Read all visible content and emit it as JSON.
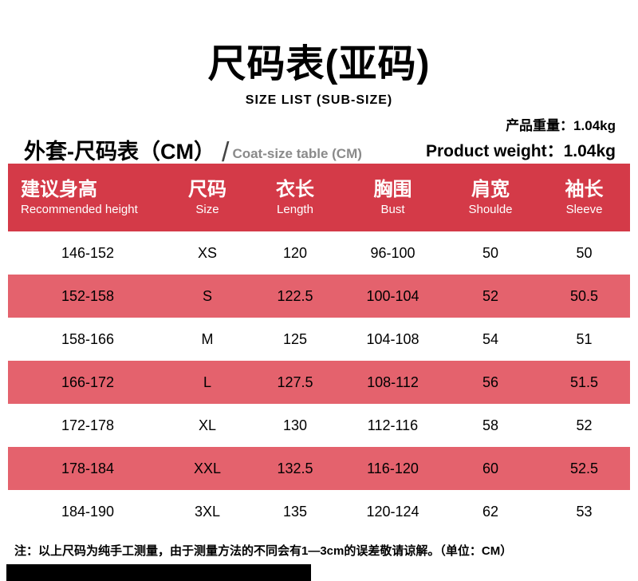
{
  "header": {
    "title": "尺码表(亚码)",
    "subtitle": "SIZE LIST (SUB-SIZE)",
    "weight_cn": "产品重量：1.04kg",
    "weight_en": "Product weight：1.04kg"
  },
  "section": {
    "title_cn": "外套-尺码表（CM）",
    "slash": "/",
    "title_en": "Coat-size table (CM)"
  },
  "chart_data": {
    "type": "table",
    "title": "尺码表(亚码) SIZE LIST (SUB-SIZE)",
    "unit": "CM",
    "columns": [
      {
        "cn": "建议身高",
        "en": "Recommended height"
      },
      {
        "cn": "尺码",
        "en": "Size"
      },
      {
        "cn": "衣长",
        "en": "Length"
      },
      {
        "cn": "胸围",
        "en": "Bust"
      },
      {
        "cn": "肩宽",
        "en": "Shoulde"
      },
      {
        "cn": "袖长",
        "en": "Sleeve"
      }
    ],
    "rows": [
      [
        "146-152",
        "XS",
        "120",
        "96-100",
        "50",
        "50"
      ],
      [
        "152-158",
        "S",
        "122.5",
        "100-104",
        "52",
        "50.5"
      ],
      [
        "158-166",
        "M",
        "125",
        "104-108",
        "54",
        "51"
      ],
      [
        "166-172",
        "L",
        "127.5",
        "108-112",
        "56",
        "51.5"
      ],
      [
        "172-178",
        "XL",
        "130",
        "112-116",
        "58",
        "52"
      ],
      [
        "178-184",
        "XXL",
        "132.5",
        "116-120",
        "60",
        "52.5"
      ],
      [
        "184-190",
        "3XL",
        "135",
        "120-124",
        "62",
        "53"
      ]
    ]
  },
  "note": "注：以上尺码为纯手工测量，由于测量方法的不同会有1—3cm的误差敬请谅解。（单位：CM）",
  "colors": {
    "header_red": "#d43a48",
    "row_red": "#e4626d",
    "text_black": "#000000",
    "muted_gray": "#8a8a8a"
  }
}
